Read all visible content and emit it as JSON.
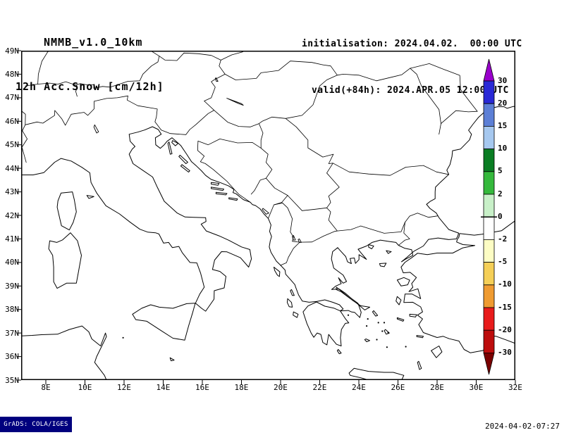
{
  "header": {
    "model": "NMMB_v1.0_10km",
    "product": "12h Acc.Snow [cm/12h]",
    "init_label": "initialisation: 2024.04.02.  00:00 UTC",
    "valid_label": "valid(+84h): 2024.APR.05 12:00 UTC"
  },
  "map": {
    "lat_ticks": [
      "49N",
      "48N",
      "47N",
      "46N",
      "45N",
      "44N",
      "43N",
      "42N",
      "41N",
      "40N",
      "39N",
      "38N",
      "37N",
      "36N",
      "35N"
    ],
    "lon_ticks": [
      "8E",
      "10E",
      "12E",
      "14E",
      "16E",
      "18E",
      "20E",
      "22E",
      "24E",
      "26E",
      "28E",
      "30E",
      "32E"
    ]
  },
  "colorbar": {
    "boundary_labels": [
      "30",
      "20",
      "15",
      "10",
      "5",
      "2",
      "0",
      "-2",
      "-5",
      "-10",
      "-15",
      "-20",
      "-30"
    ],
    "segment_colors": [
      "#2929d6",
      "#5c7fd6",
      "#a6c8ef",
      "#0a7d23",
      "#35b93c",
      "#c8f0c8",
      "#ffffff",
      "#fdfdc4",
      "#f5cf57",
      "#ef9b31",
      "#e81b1b",
      "#bd0d0d"
    ],
    "arrow_top_color": "#9900cc",
    "arrow_bottom_color": "#7a0000",
    "line_color": "#000000"
  },
  "footer": {
    "credit": "GrADS: COLA/IGES",
    "timestamp": "2024-04-02-07:27"
  }
}
